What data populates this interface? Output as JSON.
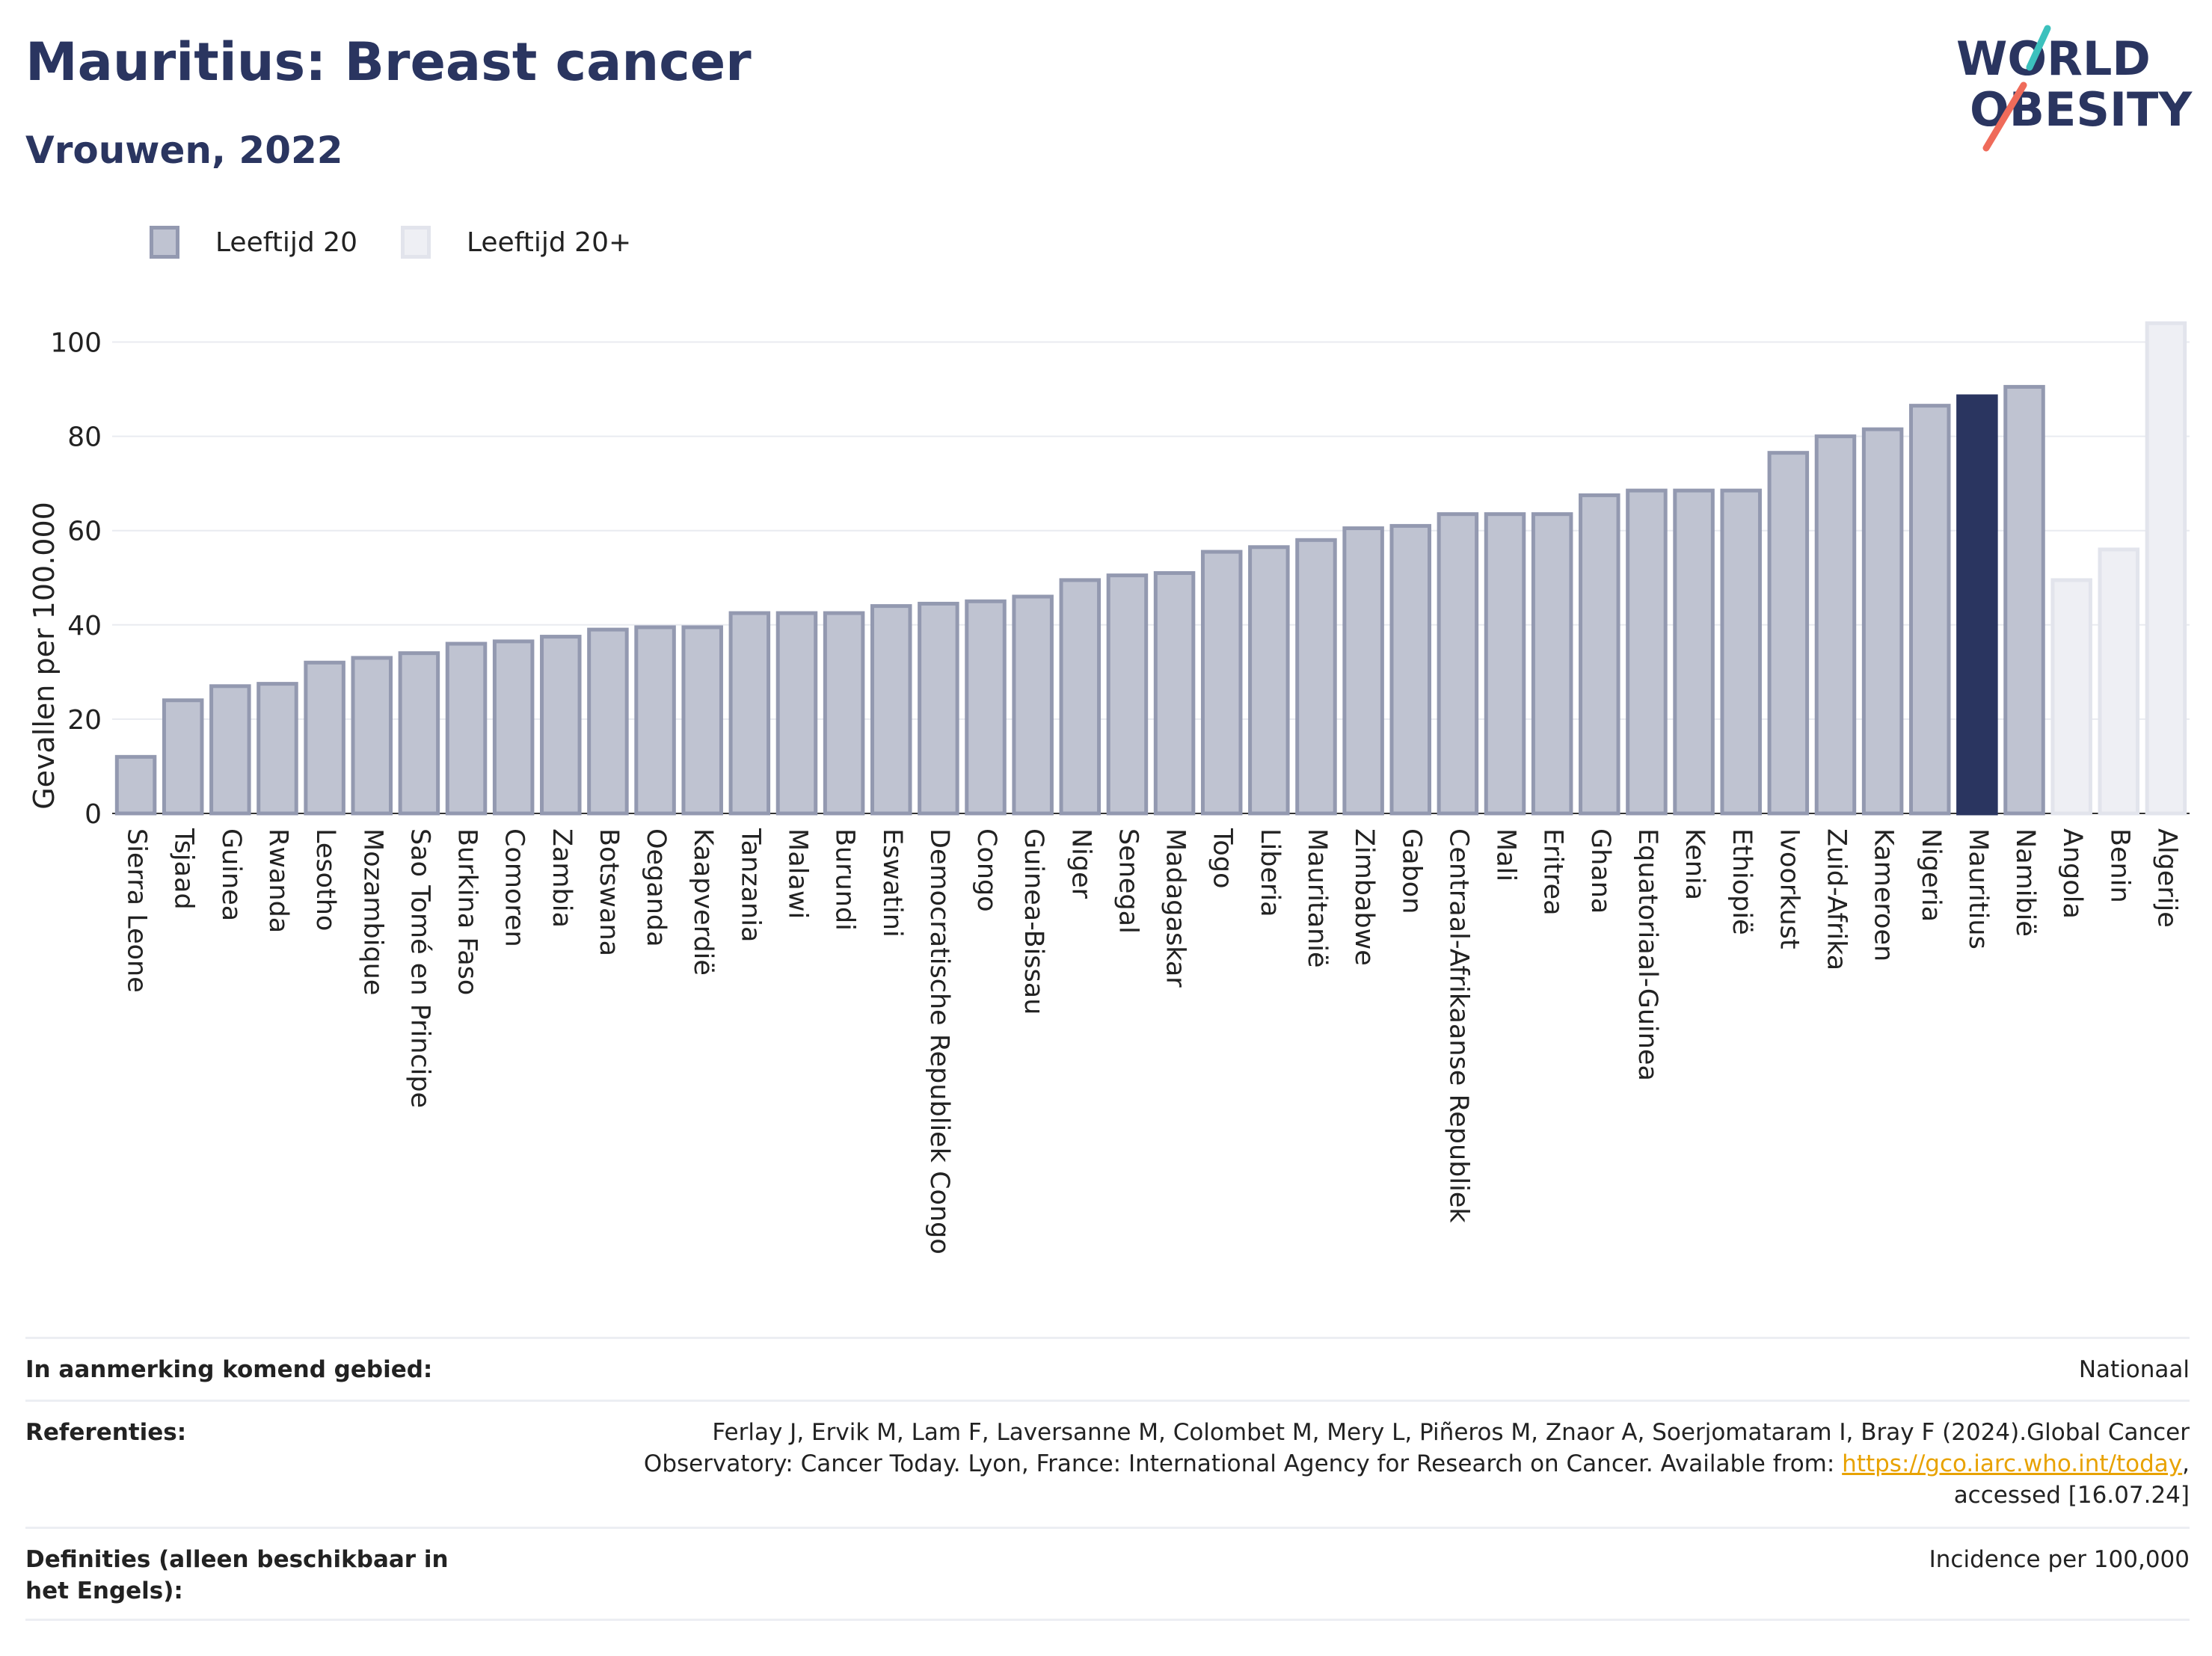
{
  "header": {
    "title": "Mauritius: Breast cancer",
    "subtitle": "Vrouwen, 2022"
  },
  "logo": {
    "line1": "WORLD",
    "line2": "OBESITY"
  },
  "legend": [
    {
      "label": "Leeftijd 20",
      "color": "#bfc3d1"
    },
    {
      "label": "Leeftijd 20+",
      "color": "#eeeff4"
    }
  ],
  "colors": {
    "bar": "#bfc3d1",
    "bar_border": "#9399b0",
    "highlight": "#2a3560",
    "bar_light": "#eeeff4",
    "bar_light_border": "#e2e4ec"
  },
  "chart_data": {
    "type": "bar",
    "ylabel": "Gevallen per 100.000",
    "ylim": [
      0,
      105
    ],
    "yticks": [
      0,
      20,
      40,
      60,
      80,
      100
    ],
    "grid": true,
    "legend_position": "top-left",
    "categories": [
      "Sierra Leone",
      "Tsjaad",
      "Guinea",
      "Rwanda",
      "Lesotho",
      "Mozambique",
      "Sao Tomé en Principe",
      "Burkina Faso",
      "Comoren",
      "Zambia",
      "Botswana",
      "Oeganda",
      "Kaapverdië",
      "Tanzania",
      "Malawi",
      "Burundi",
      "Eswatini",
      "Democratische Republiek Congo",
      "Congo",
      "Guinea-Bissau",
      "Niger",
      "Senegal",
      "Madagaskar",
      "Togo",
      "Liberia",
      "Mauritanië",
      "Zimbabwe",
      "Gabon",
      "Centraal-Afrikaanse Republiek",
      "Mali",
      "Eritrea",
      "Ghana",
      "Equatoriaal-Guinea",
      "Kenia",
      "Ethiopië",
      "Ivoorkust",
      "Zuid-Afrika",
      "Kameroen",
      "Nigeria",
      "Mauritius",
      "Namibië",
      "Angola",
      "Benin",
      "Algerije"
    ],
    "values": [
      12,
      24,
      27,
      27.5,
      32,
      33,
      34,
      36,
      36.5,
      37.5,
      39,
      39.5,
      39.5,
      42.5,
      42.5,
      42.5,
      44,
      44.5,
      45,
      46,
      49.5,
      50.5,
      51,
      55.5,
      56.5,
      58,
      60.5,
      61,
      63.5,
      63.5,
      63.5,
      67.5,
      68.5,
      68.5,
      68.5,
      76.5,
      80,
      81.5,
      86.5,
      88.5,
      90.5,
      49.5,
      56,
      104
    ],
    "series_group": [
      "Leeftijd 20",
      "Leeftijd 20",
      "Leeftijd 20",
      "Leeftijd 20",
      "Leeftijd 20",
      "Leeftijd 20",
      "Leeftijd 20",
      "Leeftijd 20",
      "Leeftijd 20",
      "Leeftijd 20",
      "Leeftijd 20",
      "Leeftijd 20",
      "Leeftijd 20",
      "Leeftijd 20",
      "Leeftijd 20",
      "Leeftijd 20",
      "Leeftijd 20",
      "Leeftijd 20",
      "Leeftijd 20",
      "Leeftijd 20",
      "Leeftijd 20",
      "Leeftijd 20",
      "Leeftijd 20",
      "Leeftijd 20",
      "Leeftijd 20",
      "Leeftijd 20",
      "Leeftijd 20",
      "Leeftijd 20",
      "Leeftijd 20",
      "Leeftijd 20",
      "Leeftijd 20",
      "Leeftijd 20",
      "Leeftijd 20",
      "Leeftijd 20",
      "Leeftijd 20",
      "Leeftijd 20",
      "Leeftijd 20",
      "Leeftijd 20",
      "Leeftijd 20",
      "Leeftijd 20",
      "Leeftijd 20",
      "Leeftijd 20+",
      "Leeftijd 20+",
      "Leeftijd 20+"
    ],
    "highlight": "Mauritius"
  },
  "meta": {
    "area_label": "In aanmerking komend gebied:",
    "area_value": "Nationaal",
    "ref_label": "Referenties:",
    "ref_line1": "Ferlay J, Ervik M, Lam F, Laversanne M, Colombet M, Mery L, Piñeros M, Znaor A, Soerjomataram I, Bray F (2024).Global Cancer",
    "ref_line2": "Observatory: Cancer Today. Lyon, France: International Agency for Research on Cancer. Available from:",
    "ref_link": "https://gco.iarc.who.int/today",
    "ref_line3": "accessed [16.07.24]",
    "def_label": "Definities (alleen beschikbaar in het Engels):",
    "def_value": "Incidence per 100,000"
  }
}
